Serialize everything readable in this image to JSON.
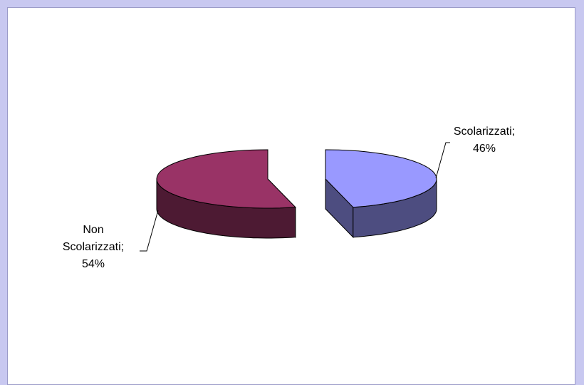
{
  "chart_data": {
    "type": "pie3d",
    "values": [
      46,
      54
    ],
    "value_labels": [
      "Scolarizzati; 46%",
      "Non Scolarizzati; 54%"
    ],
    "colors": [
      "#9999ff",
      "#993366"
    ],
    "side_colors": [
      "#4d4d80",
      "#4d1a33"
    ]
  }
}
